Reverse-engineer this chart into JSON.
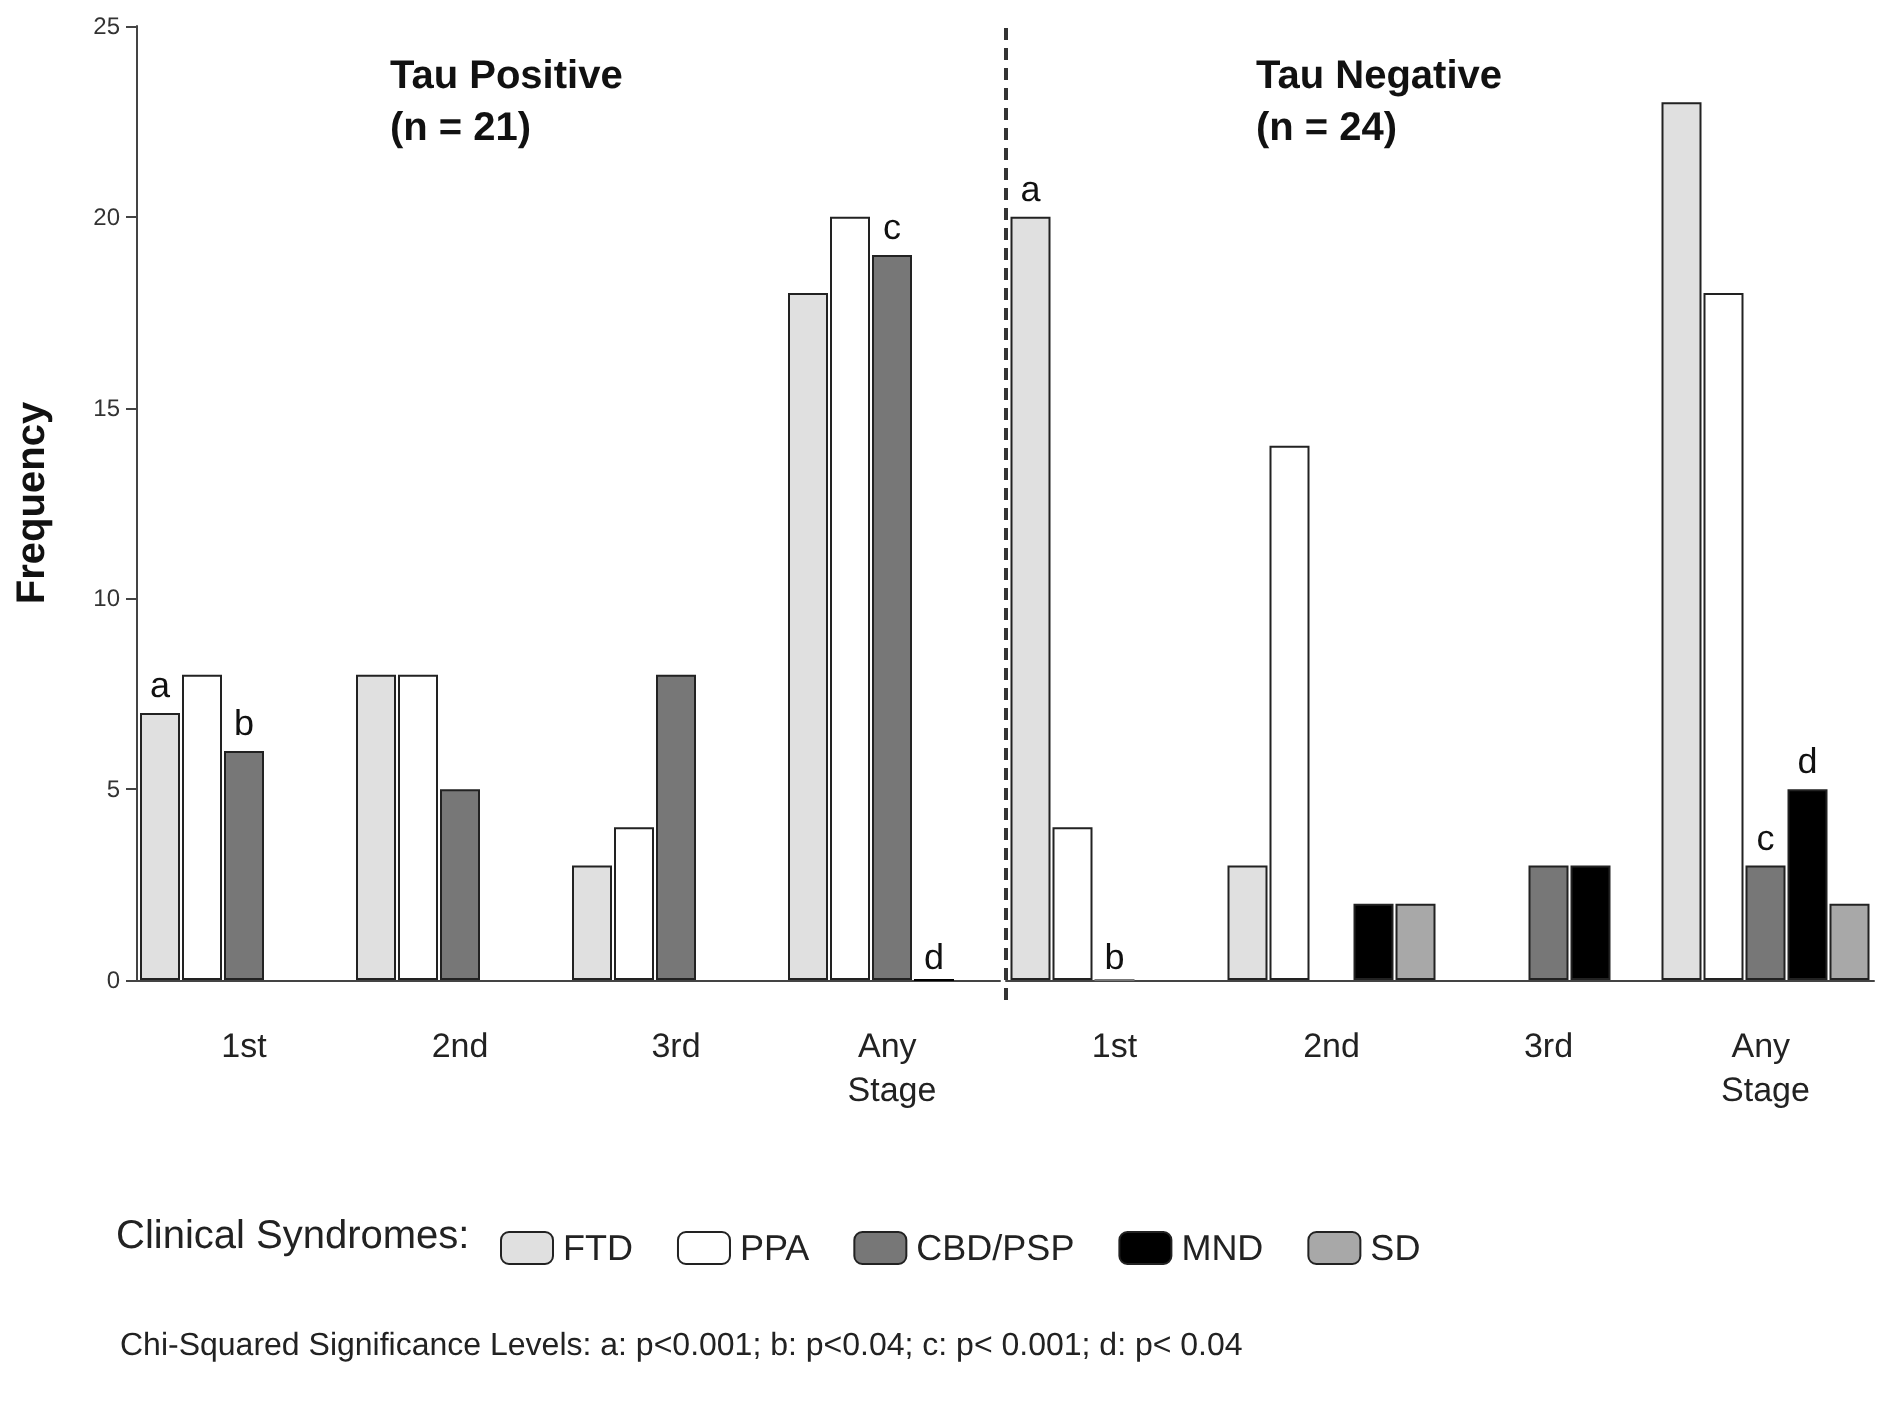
{
  "chart_data": [
    {
      "type": "bar",
      "title": "Tau Positive (n = 21)",
      "ylabel": "Frequency",
      "categories": [
        "1st",
        "2nd",
        "3rd",
        "Any Stage"
      ],
      "series": [
        {
          "name": "FTD",
          "color": "#e0e0e0",
          "values": [
            7,
            8,
            3,
            18
          ],
          "value_labels": [
            "a",
            null,
            null,
            null
          ]
        },
        {
          "name": "PPA",
          "color": "#ffffff",
          "values": [
            8,
            8,
            4,
            20
          ]
        },
        {
          "name": "CBD/PSP",
          "color": "#777777",
          "values": [
            6,
            5,
            8,
            19
          ],
          "value_labels": [
            "b",
            null,
            null,
            "c"
          ]
        },
        {
          "name": "MND",
          "color": "#000000",
          "values": [
            null,
            null,
            null,
            0
          ],
          "value_labels": [
            null,
            null,
            null,
            "d"
          ]
        },
        {
          "name": "SD",
          "color": "#a8a8a8",
          "values": [
            null,
            null,
            null,
            null
          ]
        }
      ],
      "ylim": [
        0,
        25
      ],
      "yticks": [
        0,
        5,
        10,
        15,
        20,
        25
      ],
      "grid": false,
      "legend": "bottom",
      "legend_title": "Clinical Syndromes:",
      "annotations": [
        "Chi-Squared Significance Levels: a: p<0.001; b: p<0.04; c: p< 0.001; d: p< 0.04"
      ]
    },
    {
      "type": "bar",
      "title": "Tau Negative (n = 24)",
      "categories": [
        "1st",
        "2nd",
        "3rd",
        "Any Stage"
      ],
      "series": [
        {
          "color": "#e0e0e0",
          "values": [
            20,
            3,
            null,
            23
          ],
          "value_labels": [
            "a",
            null,
            null,
            null
          ]
        },
        {
          "color": "#ffffff",
          "values": [
            4,
            14,
            null,
            18
          ]
        },
        {
          "color": "#777777",
          "values": [
            0,
            null,
            3,
            3
          ],
          "value_labels": [
            "b",
            null,
            null,
            "c"
          ]
        },
        {
          "color": "#000000",
          "values": [
            null,
            2,
            3,
            5
          ],
          "value_labels": [
            null,
            null,
            null,
            "d"
          ]
        },
        {
          "color": "#a8a8a8",
          "values": [
            null,
            2,
            null,
            2
          ]
        }
      ],
      "ylim": [
        0,
        25
      ],
      "yticks": [
        0,
        5,
        10,
        15,
        20,
        25
      ],
      "grid": false,
      "legend": false,
      "tick_labels": "x"
    }
  ]
}
